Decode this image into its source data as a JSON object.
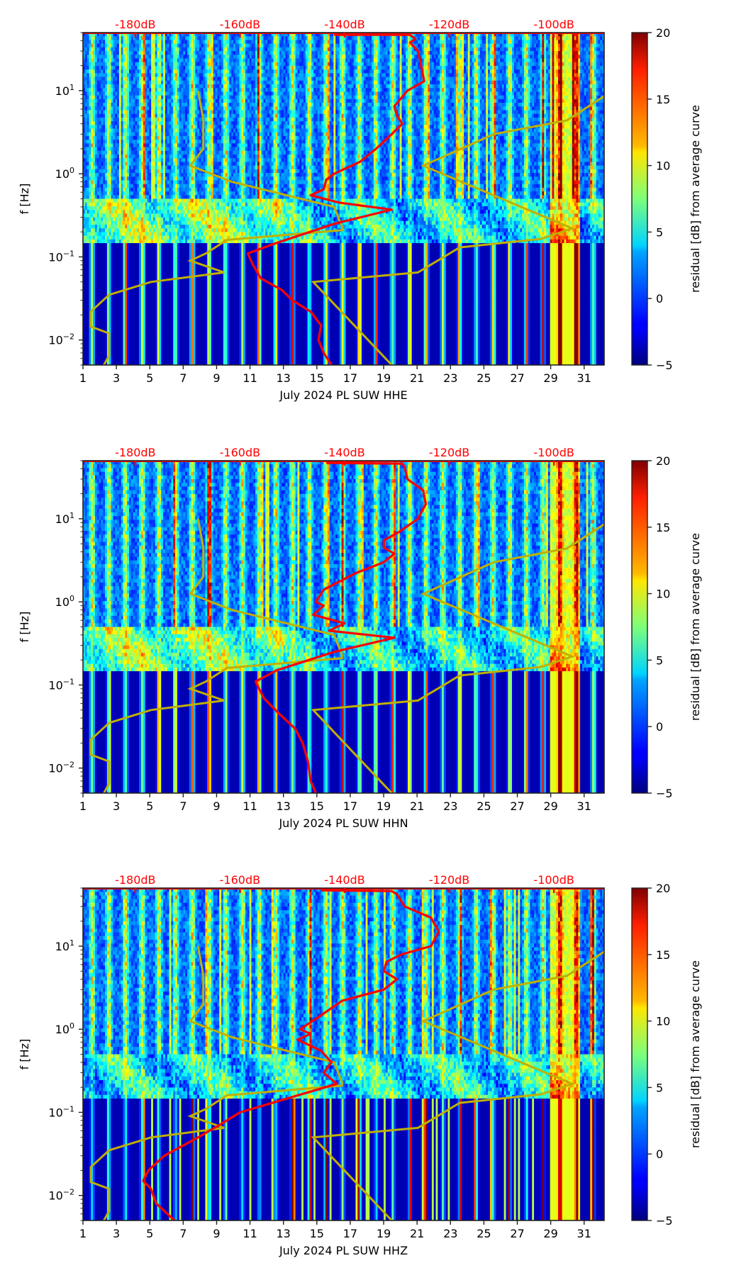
{
  "chart_data": {
    "type": "heatmap",
    "description": "Spectrogram residuals from average curve, with PSD curves overlaid",
    "x_axis": {
      "label_prefix": "July 2024 PL SUW",
      "range_days": [
        1,
        32.2
      ],
      "ticks": [
        1,
        3,
        5,
        7,
        9,
        11,
        13,
        15,
        17,
        19,
        21,
        23,
        25,
        27,
        29,
        31
      ],
      "tick_labels": [
        "1",
        "3",
        "5",
        "7",
        "9",
        "11",
        "13",
        "15",
        "17",
        "19",
        "21",
        "23",
        "25",
        "27",
        "29",
        "31"
      ]
    },
    "y_axis": {
      "label": "f [Hz]",
      "scale": "log",
      "range_hz": [
        0.005,
        50
      ],
      "ticks": [
        0.01,
        0.1,
        1,
        10
      ],
      "tick_labels": [
        {
          "base": "10",
          "exp": "−2"
        },
        {
          "base": "10",
          "exp": "−1"
        },
        {
          "base": "10",
          "exp": "0"
        },
        {
          "base": "10",
          "exp": "1"
        }
      ]
    },
    "top_axis": {
      "unit": "dB",
      "range_db": [
        -190,
        -90.4
      ],
      "ticks": [
        -180,
        -160,
        -140,
        -120,
        -100
      ],
      "tick_labels": [
        "-180dB",
        "-160dB",
        "-140dB",
        "-120dB",
        "-100dB"
      ],
      "color": "#ff0000"
    },
    "colorbar": {
      "label": "residual [dB] from average curve",
      "range": [
        -5,
        20
      ],
      "ticks": [
        -5,
        0,
        5,
        10,
        15,
        20
      ],
      "tick_labels": [
        "−5",
        "0",
        "5",
        "10",
        "15",
        "20"
      ],
      "colormap": "jet"
    },
    "reference_curves": {
      "color": "#c0b000",
      "nlnm": {
        "name": "low noise model",
        "points_db_hz": [
          [
            -168.0,
            10
          ],
          [
            -167.0,
            4.5
          ],
          [
            -167.0,
            2.0
          ],
          [
            -169.5,
            1.25
          ],
          [
            -161.5,
            0.8
          ],
          [
            -142,
            0.4
          ],
          [
            -140.5,
            0.23
          ],
          [
            -140.5,
            0.21
          ],
          [
            -162.5,
            0.16
          ],
          [
            -166.5,
            0.11
          ],
          [
            -169.5,
            0.09
          ],
          [
            -163,
            0.065
          ],
          [
            -177,
            0.05
          ],
          [
            -185,
            0.035
          ],
          [
            -188.5,
            0.022
          ],
          [
            -188.5,
            0.0145
          ],
          [
            -185,
            0.012
          ],
          [
            -185,
            0.0065
          ],
          [
            -186,
            0.005
          ]
        ]
      },
      "nhnm": {
        "name": "high noise model",
        "points_db_hz": [
          [
            -88.8,
            10
          ],
          [
            -97.5,
            4.4
          ],
          [
            -111.5,
            3.0
          ],
          [
            -125,
            1.25
          ],
          [
            -96.5,
            0.22
          ],
          [
            -102.5,
            0.165
          ],
          [
            -118,
            0.13
          ],
          [
            -126,
            0.065
          ],
          [
            -146,
            0.05
          ],
          [
            -131,
            0.005
          ]
        ]
      }
    },
    "panels": [
      {
        "channel": "HHE",
        "xlabel": "July 2024 PL SUW  HHE",
        "psd_curve": {
          "color": "#ff0000",
          "points_db_hz": [
            [
              -142,
              47
            ],
            [
              -127.5,
              47
            ],
            [
              -126.5,
              42
            ],
            [
              -127.5,
              38
            ],
            [
              -126,
              30
            ],
            [
              -125.5,
              22
            ],
            [
              -124.8,
              13
            ],
            [
              -128,
              10
            ],
            [
              -130.5,
              6.5
            ],
            [
              -130,
              5.0
            ],
            [
              -129,
              4.0
            ],
            [
              -131,
              3.0
            ],
            [
              -134,
              2.0
            ],
            [
              -137,
              1.4
            ],
            [
              -142,
              1.0
            ],
            [
              -143.5,
              0.85
            ],
            [
              -144,
              0.65
            ],
            [
              -146.5,
              0.55
            ],
            [
              -141,
              0.45
            ],
            [
              -131,
              0.37
            ],
            [
              -142,
              0.25
            ],
            [
              -154,
              0.14
            ],
            [
              -158.5,
              0.11
            ],
            [
              -157.5,
              0.08
            ],
            [
              -156,
              0.055
            ],
            [
              -152,
              0.04
            ],
            [
              -150,
              0.03
            ],
            [
              -146.5,
              0.022
            ],
            [
              -144.5,
              0.015
            ],
            [
              -145,
              0.01
            ],
            [
              -144,
              0.007
            ],
            [
              -142.5,
              0.005
            ]
          ]
        }
      },
      {
        "channel": "HHN",
        "xlabel": "July 2024 PL SUW  HHN",
        "psd_curve": {
          "color": "#ff0000",
          "points_db_hz": [
            [
              -143.5,
              47
            ],
            [
              -129,
              46
            ],
            [
              -128.5,
              42
            ],
            [
              -128,
              30
            ],
            [
              -125,
              22
            ],
            [
              -124.5,
              15
            ],
            [
              -126,
              10
            ],
            [
              -129.5,
              7
            ],
            [
              -132.5,
              5.5
            ],
            [
              -132.5,
              4.5
            ],
            [
              -130.5,
              3.8
            ],
            [
              -132.5,
              3.0
            ],
            [
              -138,
              2.2
            ],
            [
              -144,
              1.4
            ],
            [
              -145.5,
              1.0
            ],
            [
              -144,
              0.9
            ],
            [
              -146,
              0.7
            ],
            [
              -140,
              0.55
            ],
            [
              -143,
              0.45
            ],
            [
              -130.5,
              0.37
            ],
            [
              -142,
              0.25
            ],
            [
              -153,
              0.15
            ],
            [
              -157,
              0.11
            ],
            [
              -155.5,
              0.07
            ],
            [
              -152.5,
              0.045
            ],
            [
              -149.5,
              0.03
            ],
            [
              -148,
              0.02
            ],
            [
              -147,
              0.012
            ],
            [
              -146.5,
              0.007
            ],
            [
              -145.5,
              0.005
            ]
          ]
        }
      },
      {
        "channel": "HHZ",
        "xlabel": "July 2024 PL SUW  HHZ",
        "psd_curve": {
          "color": "#ff0000",
          "points_db_hz": [
            [
              -144.5,
              47
            ],
            [
              -131,
              46
            ],
            [
              -130,
              42
            ],
            [
              -128.5,
              30
            ],
            [
              -123.5,
              22
            ],
            [
              -122,
              15
            ],
            [
              -123.5,
              10
            ],
            [
              -129,
              8
            ],
            [
              -132,
              6.5
            ],
            [
              -132.5,
              5.0
            ],
            [
              -130,
              4.0
            ],
            [
              -132.5,
              3.0
            ],
            [
              -140.5,
              2.2
            ],
            [
              -145,
              1.4
            ],
            [
              -148.5,
              1.0
            ],
            [
              -146.5,
              0.88
            ],
            [
              -149,
              0.75
            ],
            [
              -144.5,
              0.55
            ],
            [
              -142.5,
              0.4
            ],
            [
              -144,
              0.3
            ],
            [
              -141.5,
              0.22
            ],
            [
              -160,
              0.1
            ],
            [
              -164,
              0.07
            ],
            [
              -168,
              0.05
            ],
            [
              -174.5,
              0.03
            ],
            [
              -177.5,
              0.02
            ],
            [
              -178.5,
              0.015
            ],
            [
              -177,
              0.012
            ],
            [
              -176,
              0.008
            ],
            [
              -172.5,
              0.005
            ]
          ]
        }
      }
    ],
    "spectrogram_features": {
      "daily_bands": "periodic diurnal vertical bands across all days",
      "microseism_band_hz": [
        0.15,
        0.5
      ],
      "strong_event_days": [
        29,
        30.5
      ],
      "long_period_band_hz": [
        0.005,
        0.1
      ]
    }
  }
}
